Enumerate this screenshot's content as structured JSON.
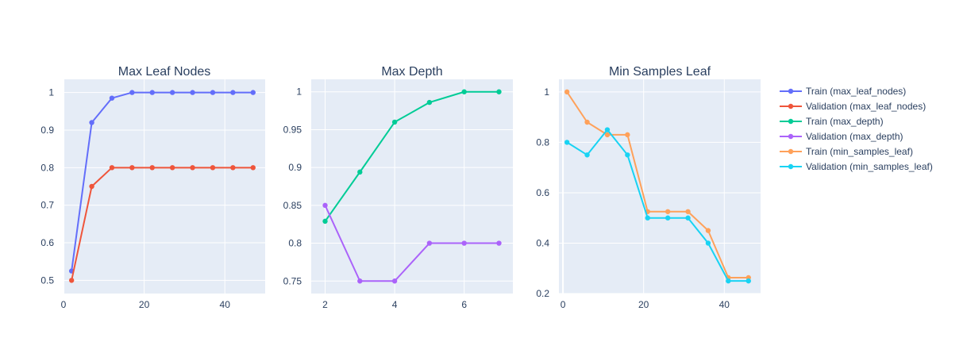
{
  "chart_data": [
    {
      "type": "line",
      "title": "Max Leaf Nodes",
      "xlabel": "",
      "ylabel": "",
      "xlim": [
        0,
        50
      ],
      "ylim": [
        0.465,
        1.035
      ],
      "xticks": [
        0,
        20,
        40
      ],
      "yticks": [
        0.5,
        0.6,
        0.7,
        0.8,
        0.9,
        1
      ],
      "ytick_labels": [
        "0.5",
        "0.6",
        "0.7",
        "0.8",
        "0.9",
        "1"
      ],
      "grid": true,
      "series": [
        {
          "name": "Train (max_leaf_nodes)",
          "color": "#636efa",
          "x": [
            2,
            7,
            12,
            17,
            22,
            27,
            32,
            37,
            42,
            47
          ],
          "y": [
            0.525,
            0.92,
            0.985,
            1,
            1,
            1,
            1,
            1,
            1,
            1
          ]
        },
        {
          "name": "Validation (max_leaf_nodes)",
          "color": "#ef553b",
          "x": [
            2,
            7,
            12,
            17,
            22,
            27,
            32,
            37,
            42,
            47
          ],
          "y": [
            0.5,
            0.75,
            0.8,
            0.8,
            0.8,
            0.8,
            0.8,
            0.8,
            0.8,
            0.8
          ]
        }
      ]
    },
    {
      "type": "line",
      "title": "Max Depth",
      "xlabel": "",
      "ylabel": "",
      "xlim": [
        1.6,
        7.4
      ],
      "ylim": [
        0.7335,
        1.0165
      ],
      "xticks": [
        2,
        4,
        6
      ],
      "yticks": [
        0.75,
        0.8,
        0.85,
        0.9,
        0.95,
        1
      ],
      "ytick_labels": [
        "0.75",
        "0.8",
        "0.85",
        "0.9",
        "0.95",
        "1"
      ],
      "grid": true,
      "series": [
        {
          "name": "Train (max_depth)",
          "color": "#00cc96",
          "x": [
            2,
            3,
            4,
            5,
            6,
            7
          ],
          "y": [
            0.829,
            0.894,
            0.96,
            0.986,
            1,
            1
          ]
        },
        {
          "name": "Validation (max_depth)",
          "color": "#ab63fa",
          "x": [
            2,
            3,
            4,
            5,
            6,
            7
          ],
          "y": [
            0.85,
            0.75,
            0.75,
            0.8,
            0.8,
            0.8
          ]
        }
      ]
    },
    {
      "type": "line",
      "title": "Min Samples Leaf",
      "xlabel": "",
      "ylabel": "",
      "xlim": [
        -1,
        49
      ],
      "ylim": [
        0.2,
        1.05
      ],
      "xticks": [
        0,
        20,
        40
      ],
      "yticks": [
        0.2,
        0.4,
        0.6,
        0.8,
        1
      ],
      "ytick_labels": [
        "0.2",
        "0.4",
        "0.6",
        "0.8",
        "1"
      ],
      "grid": true,
      "series": [
        {
          "name": "Train (min_samples_leaf)",
          "color": "#ffa15a",
          "x": [
            1,
            6,
            11,
            16,
            21,
            26,
            31,
            36,
            41,
            46
          ],
          "y": [
            1.0,
            0.88,
            0.83,
            0.83,
            0.525,
            0.525,
            0.525,
            0.45,
            0.263,
            0.263
          ]
        },
        {
          "name": "Validation (min_samples_leaf)",
          "color": "#19d3f3",
          "x": [
            1,
            6,
            11,
            16,
            21,
            26,
            31,
            36,
            41,
            46
          ],
          "y": [
            0.8,
            0.75,
            0.85,
            0.75,
            0.5,
            0.5,
            0.5,
            0.4,
            0.25,
            0.25
          ]
        }
      ]
    }
  ],
  "legend": {
    "placement": "right",
    "items": [
      {
        "label": "Train (max_leaf_nodes)",
        "color": "#636efa"
      },
      {
        "label": "Validation (max_leaf_nodes)",
        "color": "#ef553b"
      },
      {
        "label": "Train (max_depth)",
        "color": "#00cc96"
      },
      {
        "label": "Validation (max_depth)",
        "color": "#ab63fa"
      },
      {
        "label": "Train (min_samples_leaf)",
        "color": "#ffa15a"
      },
      {
        "label": "Validation (min_samples_leaf)",
        "color": "#19d3f3"
      }
    ]
  }
}
